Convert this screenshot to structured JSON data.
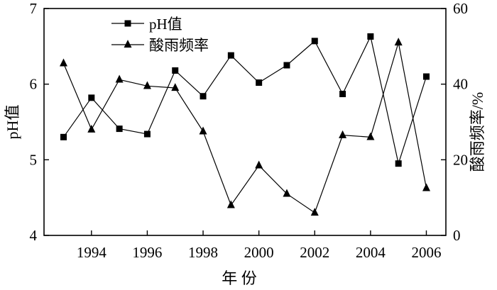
{
  "chart_data": {
    "type": "line",
    "title": "",
    "xlabel": "年 份",
    "ylabel_left": "pH值",
    "ylabel_right": "酸雨频率/%",
    "x": [
      1993,
      1994,
      1995,
      1996,
      1997,
      1998,
      1999,
      2000,
      2001,
      2002,
      2003,
      2004,
      2005,
      2006
    ],
    "xticks": [
      "1994",
      "1996",
      "1998",
      "2000",
      "2002",
      "2004",
      "2006"
    ],
    "xlim": [
      1992.3,
      2006.7
    ],
    "ylim_left": [
      4,
      7
    ],
    "ylim_right": [
      0,
      60
    ],
    "yticks_left": [
      "4",
      "5",
      "6",
      "7"
    ],
    "yticks_right": [
      "0",
      "20",
      "40",
      "60"
    ],
    "legend_position": "top-left",
    "series": [
      {
        "name": "pH值",
        "axis": "left",
        "marker": "square",
        "values": [
          5.3,
          5.82,
          5.41,
          5.34,
          6.18,
          5.84,
          6.38,
          6.02,
          6.25,
          6.57,
          5.87,
          6.63,
          4.95,
          6.1
        ]
      },
      {
        "name": "酸雨频率",
        "axis": "right",
        "marker": "triangle",
        "values": [
          45.5,
          28,
          41.2,
          39.5,
          39,
          27.5,
          8,
          18.5,
          11,
          6,
          26.5,
          26,
          51,
          12.5
        ]
      }
    ]
  }
}
